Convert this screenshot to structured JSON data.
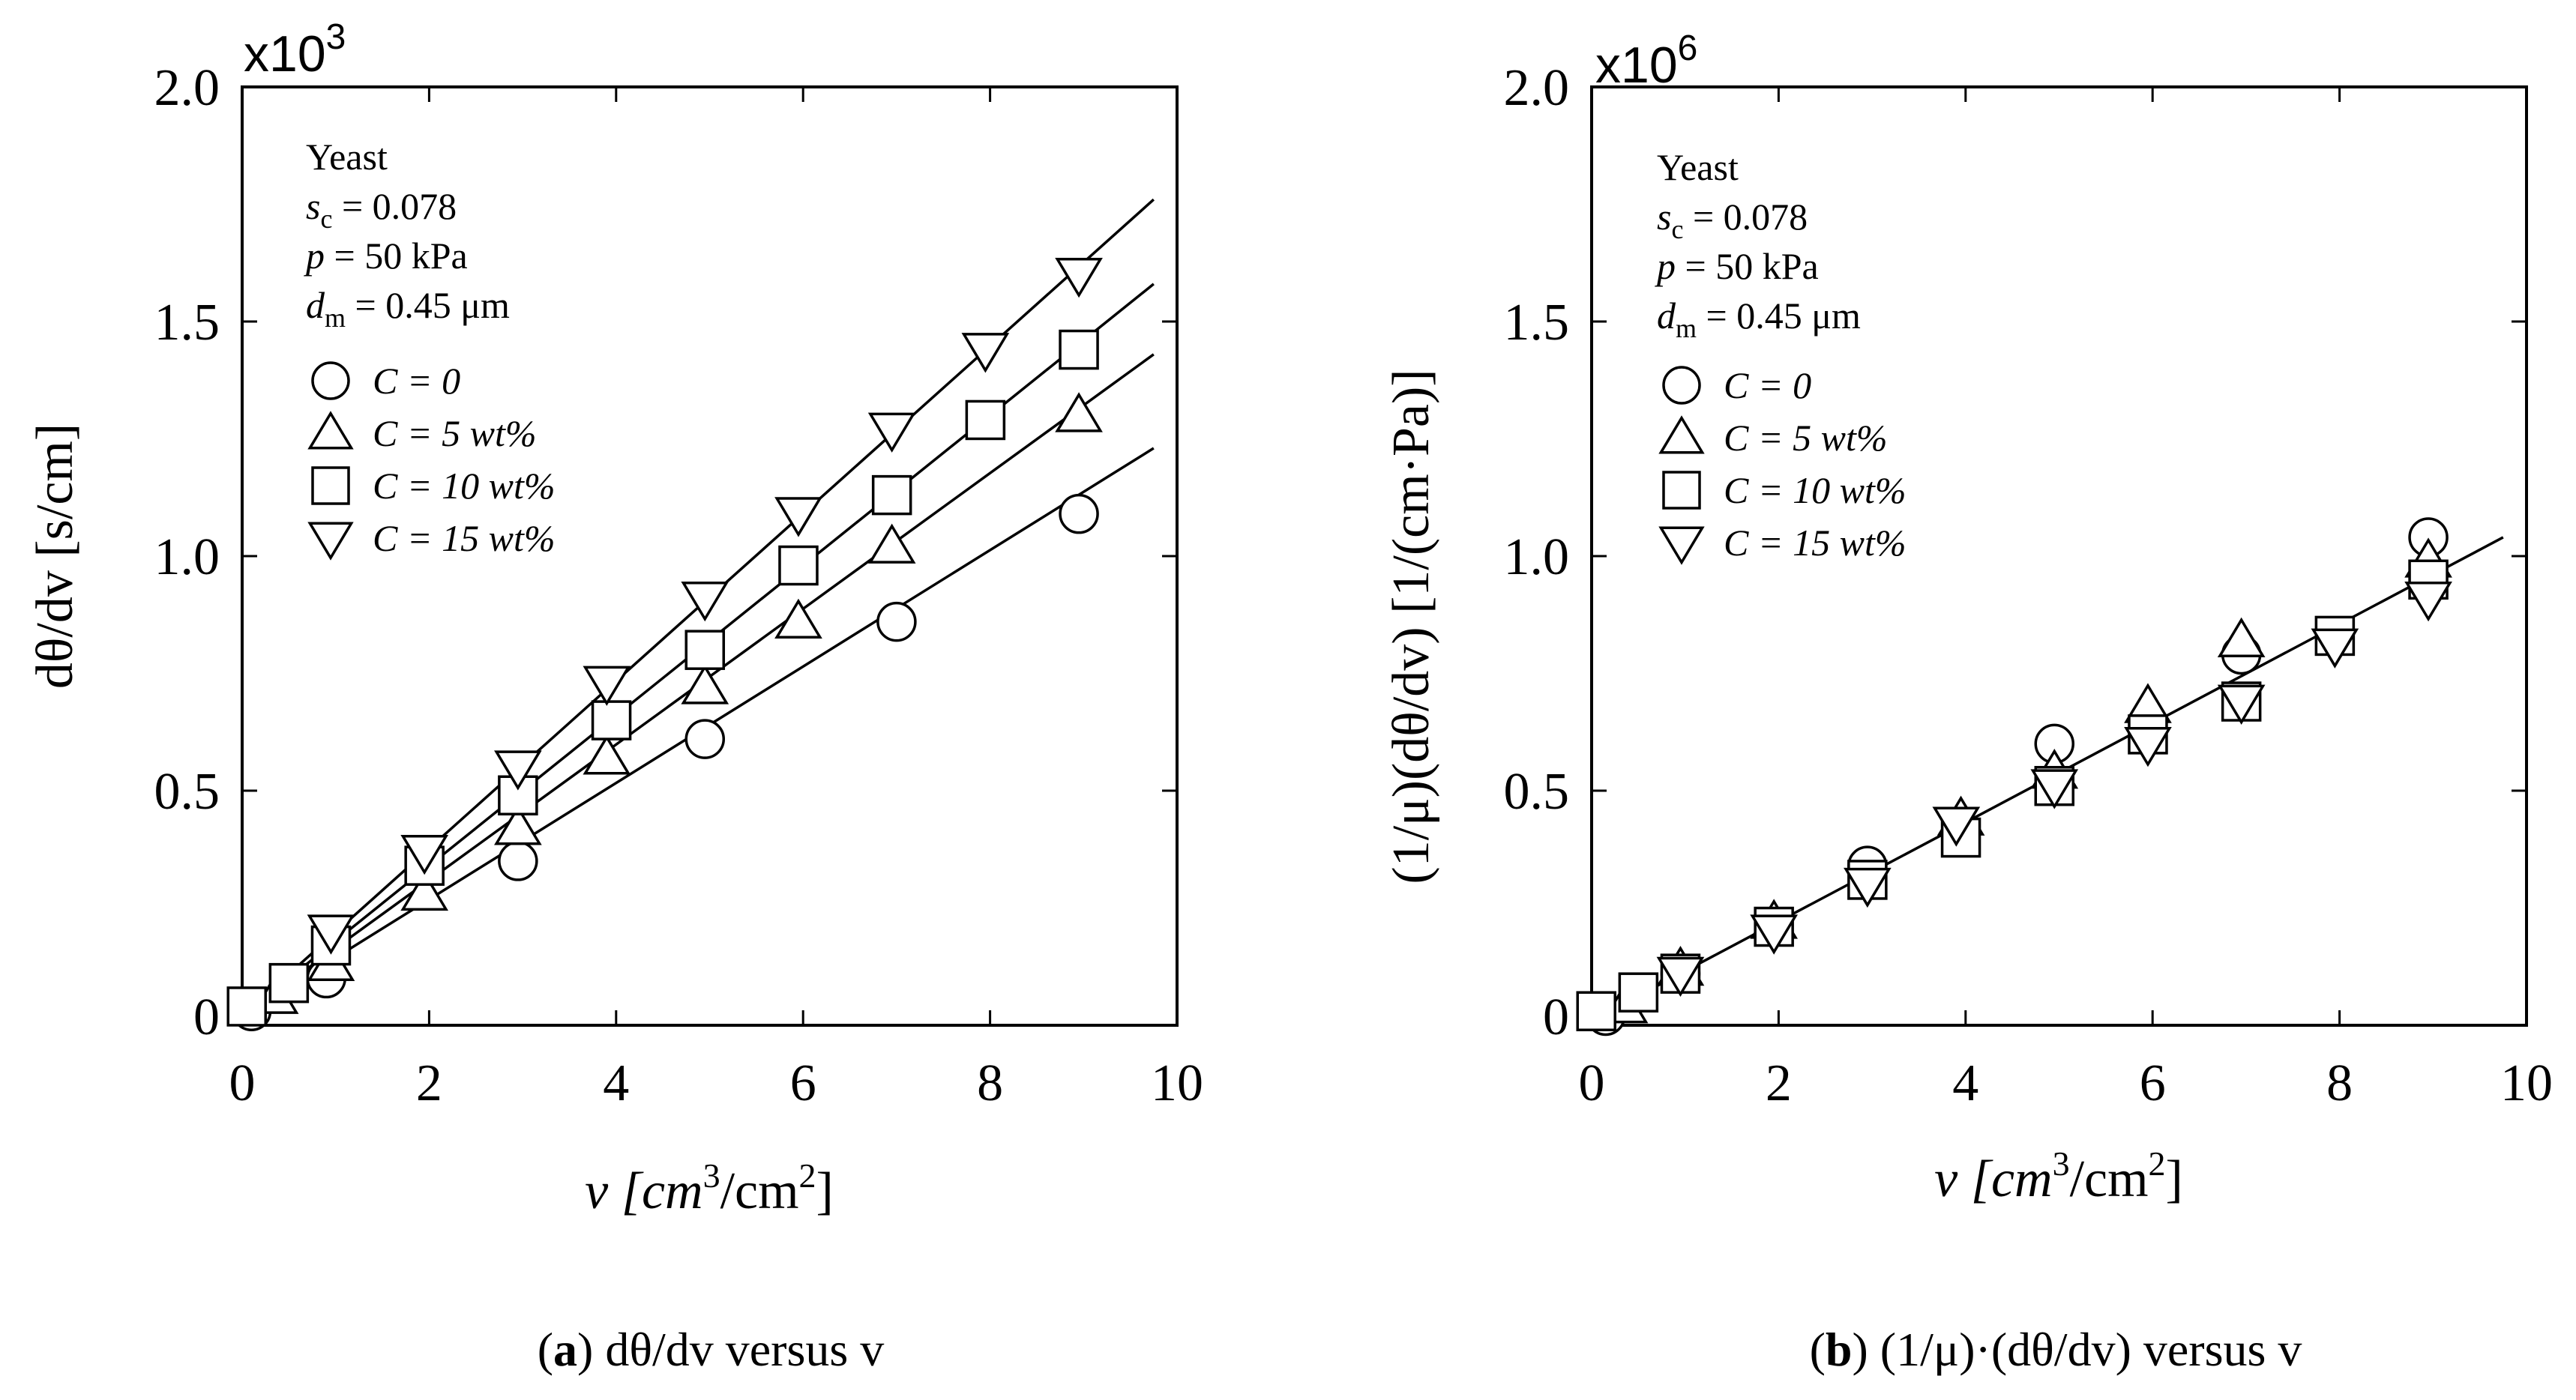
{
  "panels": [
    {
      "id": "a",
      "caption_letter": "a",
      "caption_text": "dθ/dv versus v",
      "multiplier_base": "x10",
      "multiplier_exp": "3",
      "ylabel": "dθ/dv [s/cm]",
      "xlabel_pre": "v [cm",
      "xlabel_mid": "/cm",
      "xlabel_end": "]",
      "xlabel_sup1": "3",
      "xlabel_sup2": "2",
      "info": {
        "material": "Yeast",
        "sc": "s",
        "sc_sub": "c",
        "sc_val": " = 0.078",
        "p": "p",
        "p_val": " = 50 kPa",
        "dm": "d",
        "dm_sub": "m",
        "dm_val": " = 0.45 μm"
      },
      "legend": [
        {
          "marker": "circle",
          "label": "C = 0"
        },
        {
          "marker": "triangle-up",
          "label": "C =   5 wt%"
        },
        {
          "marker": "square",
          "label": "C = 10 wt%"
        },
        {
          "marker": "triangle-down",
          "label": "C = 15 wt%"
        }
      ]
    },
    {
      "id": "b",
      "caption_letter": "b",
      "caption_text": "(1/μ)·(dθ/dv) versus v",
      "multiplier_base": "x10",
      "multiplier_exp": "6",
      "ylabel": "(1/μ)(dθ/dv) [1/(cm·Pa)]",
      "xlabel_pre": "v [cm",
      "xlabel_mid": "/cm",
      "xlabel_end": "]",
      "xlabel_sup1": "3",
      "xlabel_sup2": "2",
      "info": {
        "material": "Yeast",
        "sc": "s",
        "sc_sub": "c",
        "sc_val": " = 0.078",
        "p": "p",
        "p_val": " = 50 kPa",
        "dm": "d",
        "dm_sub": "m",
        "dm_val": " = 0.45 μm"
      },
      "legend": [
        {
          "marker": "circle",
          "label": "C = 0"
        },
        {
          "marker": "triangle-up",
          "label": "C =   5 wt%"
        },
        {
          "marker": "square",
          "label": "C = 10 wt%"
        },
        {
          "marker": "triangle-down",
          "label": "C = 15 wt%"
        }
      ]
    }
  ],
  "chart_data": [
    {
      "type": "scatter",
      "title": "(a) dθ/dv versus v",
      "xlabel": "v [cm3/cm2]",
      "ylabel": "dθ/dv [s/cm]",
      "y_multiplier": "x10^3",
      "xlim": [
        0,
        10
      ],
      "ylim": [
        0,
        2.0
      ],
      "xticks": [
        "0",
        "2",
        "4",
        "6",
        "8",
        "10"
      ],
      "xtick_values": [
        0,
        2,
        4,
        6,
        8,
        10
      ],
      "yticks": [
        "0",
        "0.5",
        "1.0",
        "1.5",
        "2.0"
      ],
      "ytick_values": [
        0,
        0.5,
        1.0,
        1.5,
        2.0
      ],
      "series": [
        {
          "name": "C = 0",
          "marker": "circle",
          "x": [
            0.1,
            0.9,
            2.95,
            4.95,
            7.0,
            8.95
          ],
          "y": [
            0.03,
            0.1,
            0.35,
            0.61,
            0.86,
            1.09
          ],
          "fit": {
            "x": [
              0,
              9.75
            ],
            "y": [
              0.02,
              1.23
            ]
          }
        },
        {
          "name": "C = 5 wt%",
          "marker": "triangle-up",
          "x": [
            0.35,
            0.95,
            1.95,
            2.95,
            3.9,
            4.95,
            5.95,
            6.95,
            8.95
          ],
          "y": [
            0.06,
            0.13,
            0.28,
            0.42,
            0.57,
            0.72,
            0.86,
            1.02,
            1.3
          ],
          "fit": {
            "x": [
              0,
              9.75
            ],
            "y": [
              0.02,
              1.43
            ]
          }
        },
        {
          "name": "C = 10 wt%",
          "marker": "square",
          "x": [
            0.05,
            0.5,
            0.95,
            1.95,
            2.95,
            3.95,
            4.95,
            5.95,
            6.95,
            7.95,
            8.95
          ],
          "y": [
            0.04,
            0.09,
            0.17,
            0.34,
            0.49,
            0.65,
            0.8,
            0.98,
            1.13,
            1.29,
            1.44
          ],
          "fit": {
            "x": [
              0,
              9.75
            ],
            "y": [
              0.02,
              1.58
            ]
          }
        },
        {
          "name": "C = 15 wt%",
          "marker": "triangle-down",
          "x": [
            0.95,
            1.95,
            2.95,
            3.9,
            4.95,
            5.95,
            6.95,
            7.95,
            8.95
          ],
          "y": [
            0.2,
            0.37,
            0.55,
            0.73,
            0.91,
            1.09,
            1.27,
            1.44,
            1.6
          ],
          "fit": {
            "x": [
              0,
              9.75
            ],
            "y": [
              0.02,
              1.76
            ]
          }
        }
      ]
    },
    {
      "type": "scatter",
      "title": "(b) (1/μ)·(dθ/dv) versus v",
      "xlabel": "v [cm3/cm2]",
      "ylabel": "(1/μ)(dθ/dv) [1/(cm·Pa)]",
      "y_multiplier": "x10^6",
      "xlim": [
        0,
        10
      ],
      "ylim": [
        0,
        2.0
      ],
      "xticks": [
        "0",
        "2",
        "4",
        "6",
        "8",
        "10"
      ],
      "xtick_values": [
        0,
        2,
        4,
        6,
        8,
        10
      ],
      "yticks": [
        "0",
        "0.5",
        "1.0",
        "1.5",
        "2.0"
      ],
      "ytick_values": [
        0,
        0.5,
        1.0,
        1.5,
        2.0
      ],
      "series": [
        {
          "name": "C = 0",
          "marker": "circle",
          "x": [
            0.15,
            0.95,
            2.95,
            4.95,
            6.95,
            8.95
          ],
          "y": [
            0.02,
            0.11,
            0.34,
            0.6,
            0.79,
            1.04
          ]
        },
        {
          "name": "C = 5 wt%",
          "marker": "triangle-up",
          "x": [
            0.35,
            0.95,
            1.95,
            3.95,
            4.95,
            5.95,
            6.95,
            8.95
          ],
          "y": [
            0.04,
            0.12,
            0.22,
            0.44,
            0.54,
            0.68,
            0.82,
            0.99
          ]
        },
        {
          "name": "C = 10 wt%",
          "marker": "square",
          "x": [
            0.05,
            0.5,
            0.95,
            1.95,
            2.95,
            3.95,
            4.95,
            5.95,
            6.95,
            7.95,
            8.95
          ],
          "y": [
            0.03,
            0.07,
            0.11,
            0.21,
            0.31,
            0.4,
            0.51,
            0.62,
            0.69,
            0.83,
            0.95
          ]
        },
        {
          "name": "C = 15 wt%",
          "marker": "triangle-down",
          "x": [
            0.95,
            1.95,
            2.95,
            3.9,
            4.95,
            5.95,
            6.95,
            7.95,
            8.95
          ],
          "y": [
            0.11,
            0.2,
            0.3,
            0.43,
            0.51,
            0.6,
            0.69,
            0.81,
            0.91
          ]
        }
      ],
      "fit": {
        "x": [
          0,
          9.75
        ],
        "y": [
          0.01,
          1.04
        ]
      }
    }
  ]
}
